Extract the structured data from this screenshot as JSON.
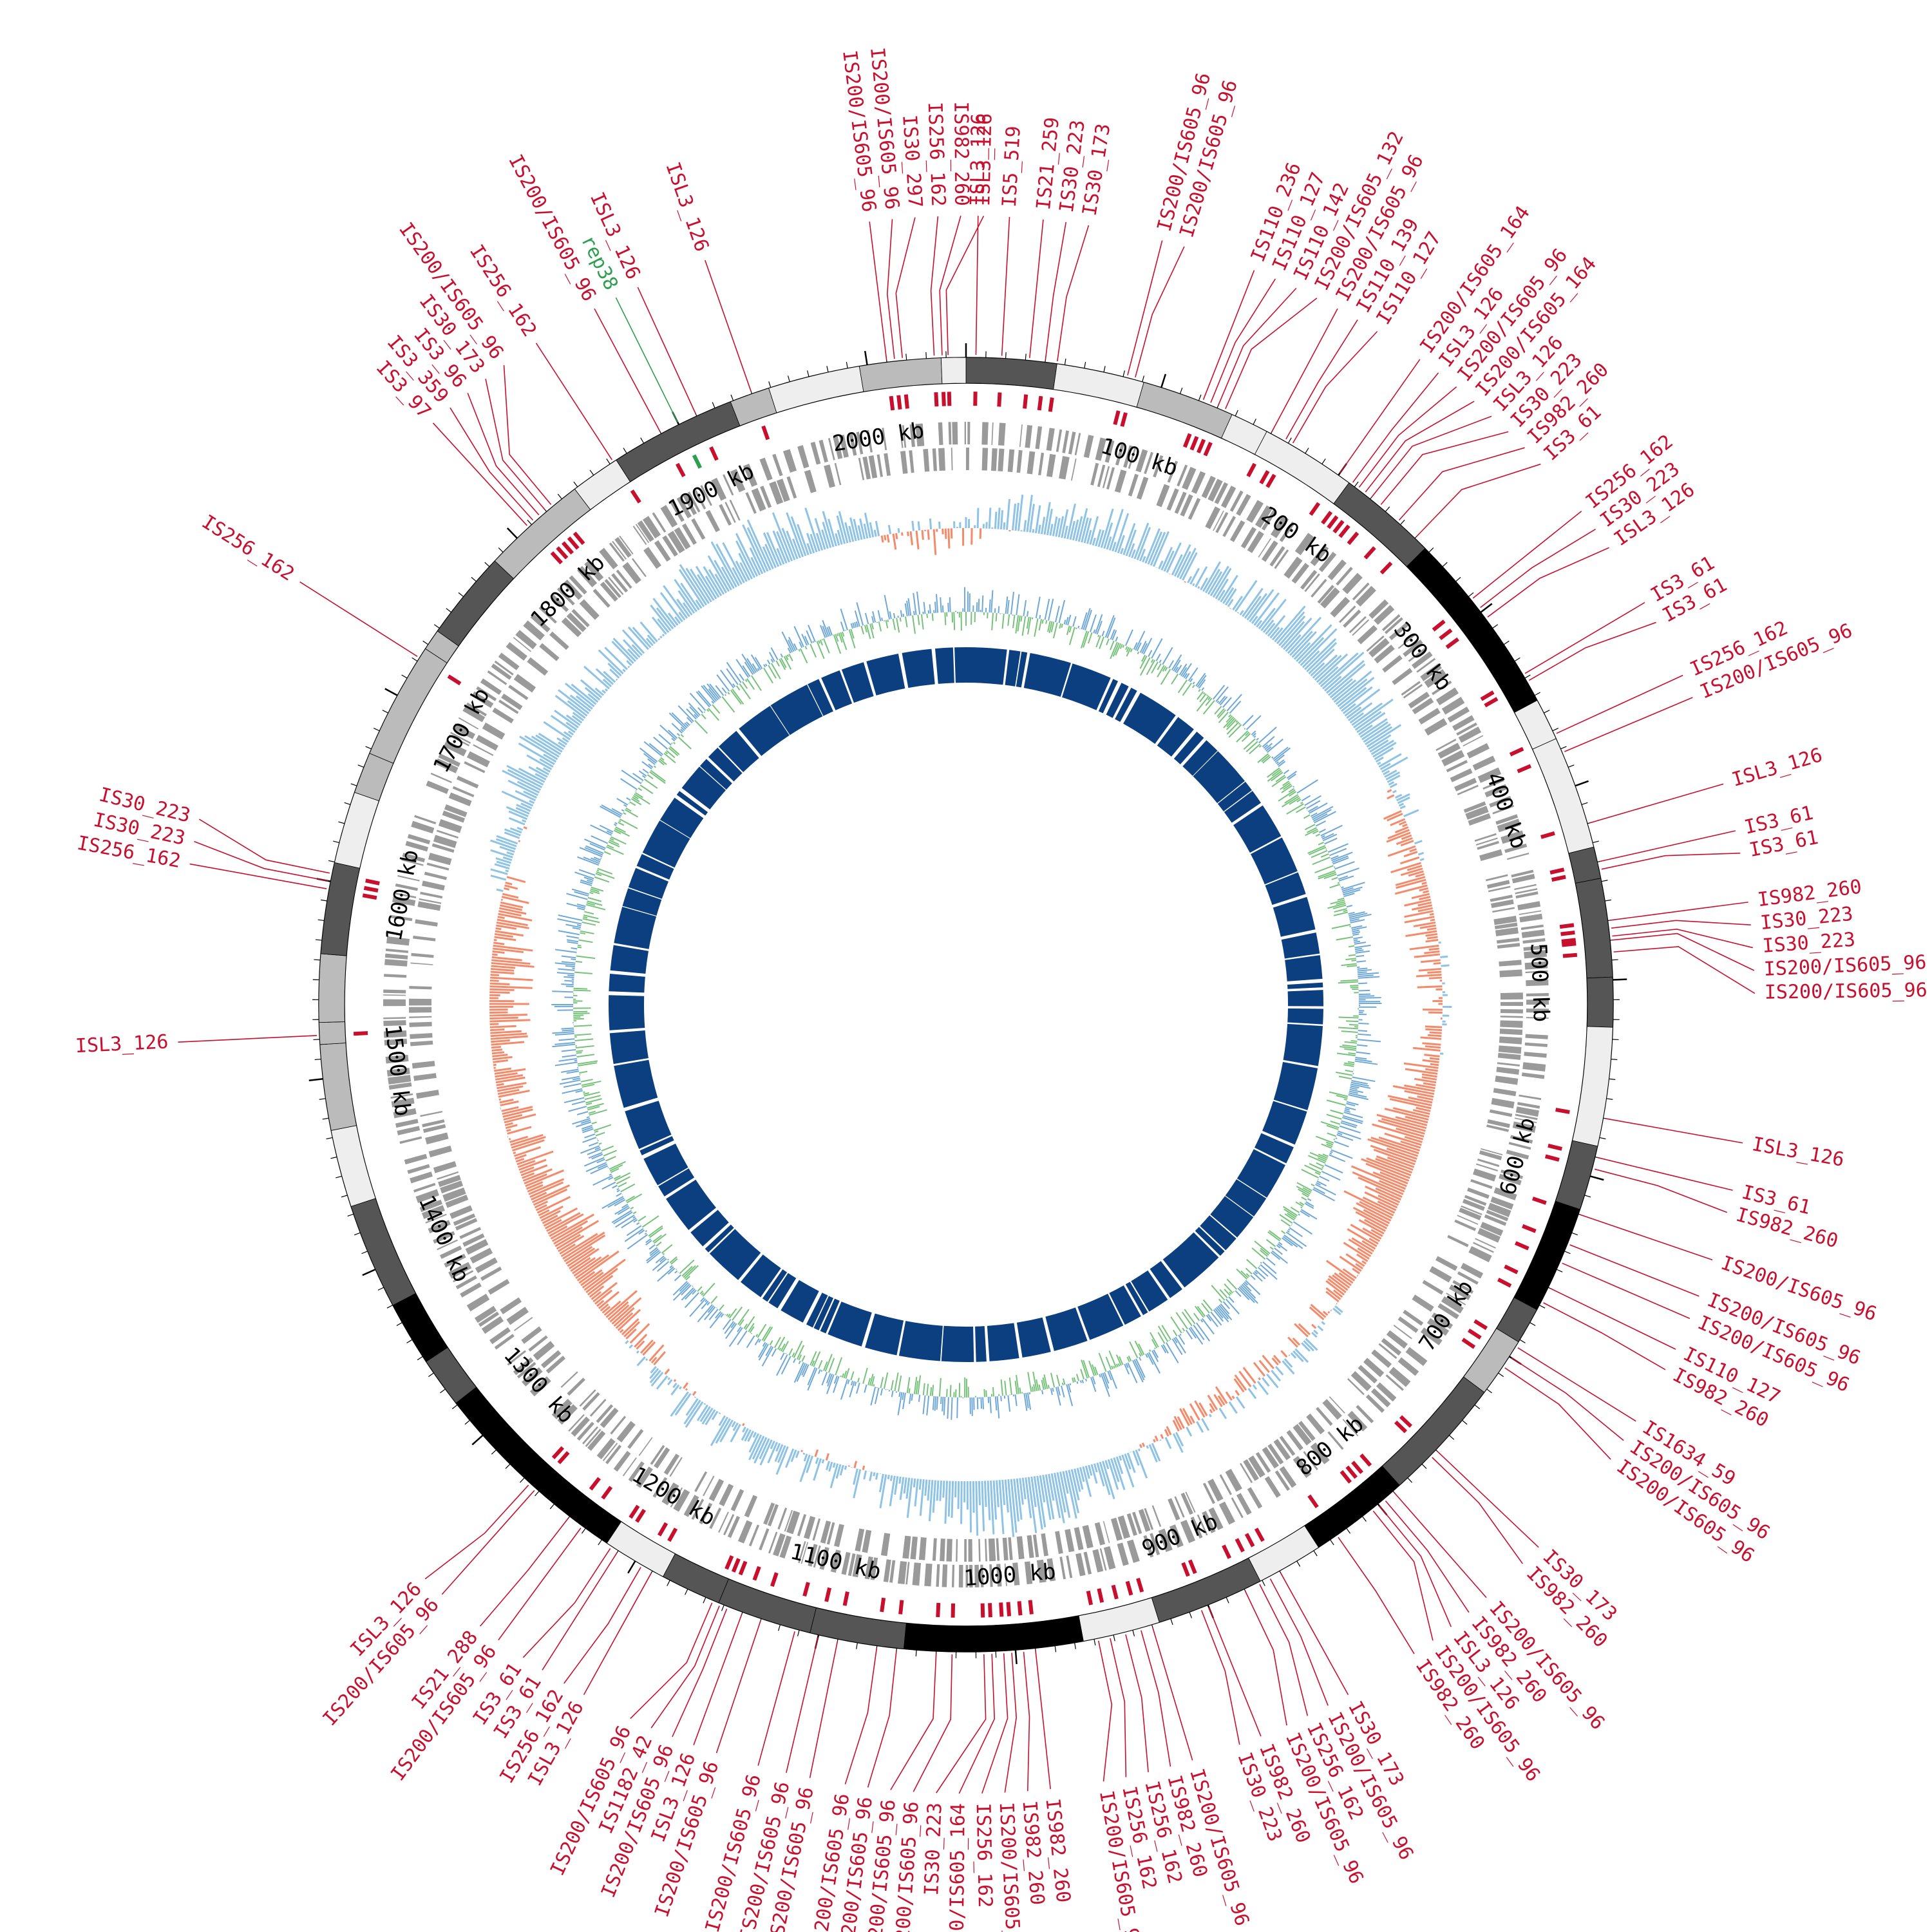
{
  "genome": {
    "length_kb": 2050,
    "tick_step_kb": 100,
    "kb_suffix": " kb"
  },
  "colors": {
    "is_element": "#c8102e",
    "rep": "#2e9e4f",
    "cds": "#9a9a9a",
    "gc_skew_pos": "#8ec3e6",
    "gc_skew_neg": "#f58a6a",
    "gc_content_pos": "#6ea8d8",
    "gc_content_neg": "#76c27a",
    "conserved": "#0b3f7f",
    "band_dark": "#000000",
    "band_mid": "#555555",
    "band_gray": "#bbbbbb",
    "band_light": "#eeeeee"
  },
  "scale_labels": [
    "100 kb",
    "200 kb",
    "300 kb",
    "400 kb",
    "500 kb",
    "600 kb",
    "700 kb",
    "800 kb",
    "900 kb",
    "1000 kb",
    "1100 kb",
    "1200 kb",
    "1300 kb",
    "1400 kb",
    "1500 kb",
    "1600 kb",
    "1700 kb",
    "1800 kb",
    "1900 kb",
    "2000 kb"
  ],
  "features": [
    {
      "label": "IS256_162",
      "kb": 2034
    },
    {
      "label": "IS982_260",
      "kb": 2038
    },
    {
      "label": "ISL3_126",
      "kb": 2041
    },
    {
      "label": "ISL3_126",
      "kb": 5
    },
    {
      "label": "IS5_519",
      "kb": 18
    },
    {
      "label": "IS21_259",
      "kb": 32
    },
    {
      "label": "IS30_223",
      "kb": 40
    },
    {
      "label": "IS30_173",
      "kb": 46
    },
    {
      "label": "IS200/IS605_96",
      "kb": 82
    },
    {
      "label": "IS200/IS605_96",
      "kb": 86
    },
    {
      "label": "IS110_236",
      "kb": 122
    },
    {
      "label": "IS110_127",
      "kb": 126
    },
    {
      "label": "IS110_142",
      "kb": 130
    },
    {
      "label": "IS200/IS605_132",
      "kb": 134
    },
    {
      "label": "IS200/IS605_96",
      "kb": 160
    },
    {
      "label": "IS110_139",
      "kb": 168
    },
    {
      "label": "IS110_127",
      "kb": 172
    },
    {
      "label": "IS200/IS605_164",
      "kb": 200
    },
    {
      "label": "ISL3_126",
      "kb": 208
    },
    {
      "label": "IS200/IS605_96",
      "kb": 212
    },
    {
      "label": "IS200/IS605_164",
      "kb": 216
    },
    {
      "label": "ISL3_126",
      "kb": 220
    },
    {
      "label": "IS30_223",
      "kb": 226
    },
    {
      "label": "IS982_260",
      "kb": 238
    },
    {
      "label": "IS3_61",
      "kb": 250
    },
    {
      "label": "IS256_162",
      "kb": 292
    },
    {
      "label": "IS30_223",
      "kb": 298
    },
    {
      "label": "ISL3_126",
      "kb": 304
    },
    {
      "label": "IS3_61",
      "kb": 338
    },
    {
      "label": "IS3_61",
      "kb": 342
    },
    {
      "label": "IS256_162",
      "kb": 372
    },
    {
      "label": "IS200/IS605_96",
      "kb": 382
    },
    {
      "label": "ISL3_126",
      "kb": 420
    },
    {
      "label": "IS3_61",
      "kb": 440
    },
    {
      "label": "IS3_61",
      "kb": 444
    },
    {
      "label": "IS982_260",
      "kb": 470
    },
    {
      "label": "IS30_223",
      "kb": 474
    },
    {
      "label": "IS30_223",
      "kb": 478
    },
    {
      "label": "IS200/IS605_96",
      "kb": 480
    },
    {
      "label": "IS200/IS605_96",
      "kb": 486
    },
    {
      "label": "ISL3_126",
      "kb": 570
    },
    {
      "label": "IS3_61",
      "kb": 590
    },
    {
      "label": "IS982_260",
      "kb": 596
    },
    {
      "label": "IS200/IS605_96",
      "kb": 620
    },
    {
      "label": "IS200/IS605_96",
      "kb": 636
    },
    {
      "label": "IS200/IS605_96",
      "kb": 646
    },
    {
      "label": "IS110_127",
      "kb": 660
    },
    {
      "label": "IS982_260",
      "kb": 668
    },
    {
      "label": "IS1634_59",
      "kb": 694
    },
    {
      "label": "IS200/IS605_96",
      "kb": 700
    },
    {
      "label": "IS200/IS605_96",
      "kb": 706
    },
    {
      "label": "IS30_173",
      "kb": 760
    },
    {
      "label": "IS982_260",
      "kb": 764
    },
    {
      "label": "IS200/IS605_96",
      "kb": 790
    },
    {
      "label": "IS982_260",
      "kb": 796
    },
    {
      "label": "ISL3_126",
      "kb": 800
    },
    {
      "label": "IS200/IS605_96",
      "kb": 804
    },
    {
      "label": "IS982_260",
      "kb": 826
    },
    {
      "label": "IS30_173",
      "kb": 860
    },
    {
      "label": "IS200/IS605_96",
      "kb": 866
    },
    {
      "label": "IS256_162",
      "kb": 872
    },
    {
      "label": "IS200/IS605_96",
      "kb": 880
    },
    {
      "label": "IS982_260",
      "kb": 900
    },
    {
      "label": "IS30_223",
      "kb": 904
    },
    {
      "label": "IS200/IS605_96",
      "kb": 930
    },
    {
      "label": "IS982_260",
      "kb": 936
    },
    {
      "label": "IS256_162",
      "kb": 944
    },
    {
      "label": "IS256_162",
      "kb": 952
    },
    {
      "label": "IS200/IS605_96",
      "kb": 958
    },
    {
      "label": "IS982_260",
      "kb": 990
    },
    {
      "label": "IS982_260",
      "kb": 996
    },
    {
      "label": "IS200/IS605_96",
      "kb": 1002
    },
    {
      "label": "IS256_162",
      "kb": 1006
    },
    {
      "label": "IS200/IS605_164",
      "kb": 1012
    },
    {
      "label": "IS30_223",
      "kb": 1016
    },
    {
      "label": "IS200/IS605_96",
      "kb": 1032
    },
    {
      "label": "IS200/IS605_96",
      "kb": 1040
    },
    {
      "label": "IS200/IS605_96",
      "kb": 1060
    },
    {
      "label": "IS200/IS605_96",
      "kb": 1070
    },
    {
      "label": "IS200/IS605_96",
      "kb": 1090
    },
    {
      "label": "IS200/IS605_96",
      "kb": 1100
    },
    {
      "label": "IS200/IS605_96",
      "kb": 1112
    },
    {
      "label": "IS200/IS605_96",
      "kb": 1130
    },
    {
      "label": "ISL3_126",
      "kb": 1140
    },
    {
      "label": "IS200/IS605_96",
      "kb": 1148
    },
    {
      "label": "IS1182_42",
      "kb": 1152
    },
    {
      "label": "IS200/IS605_96",
      "kb": 1156
    },
    {
      "label": "ISL3_126",
      "kb": 1190
    },
    {
      "label": "IS256_162",
      "kb": 1196
    },
    {
      "label": "IS3_61",
      "kb": 1210
    },
    {
      "label": "IS3_61",
      "kb": 1214
    },
    {
      "label": "IS200/IS605_96",
      "kb": 1232
    },
    {
      "label": "IS21_288",
      "kb": 1240
    },
    {
      "label": "IS200/IS605_96",
      "kb": 1262
    },
    {
      "label": "ISL3_126",
      "kb": 1266
    },
    {
      "label": "ISL3_126",
      "kb": 1522
    },
    {
      "label": "IS256_162",
      "kb": 1596
    },
    {
      "label": "IS30_223",
      "kb": 1600
    },
    {
      "label": "IS30_223",
      "kb": 1604
    },
    {
      "label": "IS256_162",
      "kb": 1722
    },
    {
      "label": "IS3_97",
      "kb": 1808
    },
    {
      "label": "IS3_359",
      "kb": 1812
    },
    {
      "label": "IS3_96",
      "kb": 1816
    },
    {
      "label": "IS30_173",
      "kb": 1820
    },
    {
      "label": "IS200/IS605_96",
      "kb": 1824
    },
    {
      "label": "IS256_162",
      "kb": 1862
    },
    {
      "label": "rep38",
      "kb": 1900,
      "type": "rep"
    },
    {
      "label": "IS200/IS605_96",
      "kb": 1890
    },
    {
      "label": "ISL3_126",
      "kb": 1910
    },
    {
      "label": "ISL3_126",
      "kb": 1940
    },
    {
      "label": "IS200/IS605_96",
      "kb": 2010
    },
    {
      "label": "IS200/IS605_96",
      "kb": 2014
    },
    {
      "label": "IS30_297",
      "kb": 2018
    }
  ]
}
